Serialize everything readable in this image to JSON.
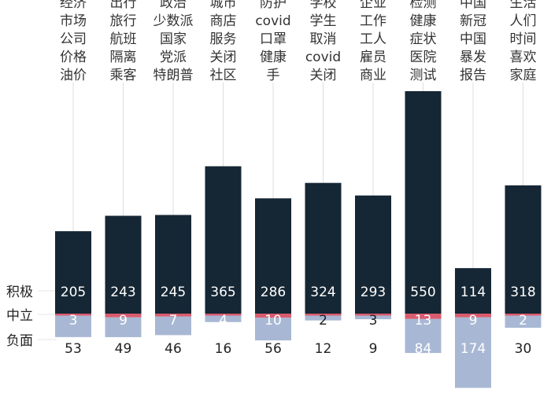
{
  "chart_data": {
    "type": "bar",
    "stacked": "diverging",
    "categories": [
      [
        "经济",
        "市场",
        "公司",
        "价格",
        "油价"
      ],
      [
        "出行",
        "旅行",
        "航班",
        "隔离",
        "乘客"
      ],
      [
        "政治",
        "少数派",
        "国家",
        "党派",
        "特朗普"
      ],
      [
        "城市",
        "商店",
        "服务",
        "关闭",
        "社区"
      ],
      [
        "防护",
        "covid",
        "口罩",
        "健康",
        "手"
      ],
      [
        "学校",
        "学生",
        "取消",
        "covid",
        "关闭"
      ],
      [
        "企业",
        "工作",
        "工人",
        "雇员",
        "商业"
      ],
      [
        "检测",
        "健康",
        "症状",
        "医院",
        "测试"
      ],
      [
        "中国",
        "新冠",
        "中国",
        "暴发",
        "报告"
      ],
      [
        "生活",
        "人们",
        "时间",
        "喜欢",
        "家庭"
      ]
    ],
    "series": [
      {
        "name": "积极",
        "color": "#152634",
        "values": [
          205,
          243,
          245,
          365,
          286,
          324,
          293,
          550,
          114,
          318
        ]
      },
      {
        "name": "中立",
        "color": "#d95b6e",
        "values": [
          3,
          9,
          7,
          4,
          10,
          2,
          3,
          13,
          9,
          2
        ]
      },
      {
        "name": "负面",
        "color": "#a8b8d4",
        "values": [
          53,
          49,
          46,
          16,
          56,
          12,
          9,
          84,
          174,
          30
        ]
      }
    ],
    "grid": false,
    "legend": "left"
  }
}
